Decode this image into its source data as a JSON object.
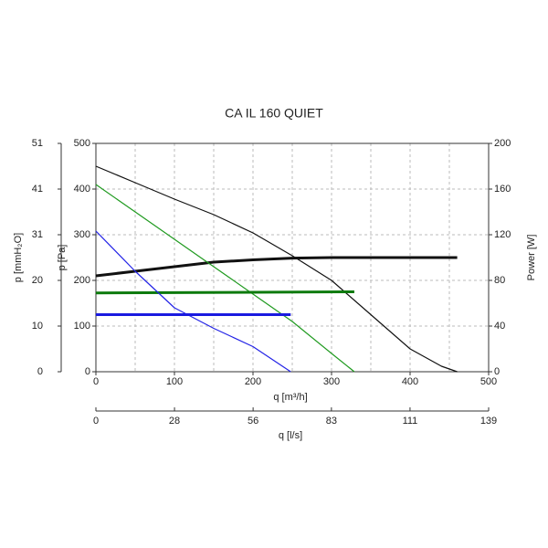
{
  "chart_data": {
    "type": "line",
    "title": "CA IL 160 QUIET",
    "xlabel": "q [m³/h]",
    "ylabel": "p [Pa]",
    "y2label": "Power [W]",
    "y3label": "p [mmH₂O]",
    "x2label": "q [l/s]",
    "xlim": [
      0,
      500
    ],
    "xticks": [
      0,
      100,
      200,
      300,
      400,
      500
    ],
    "xminorticks": [
      50,
      150,
      250,
      350,
      450
    ],
    "ylim": [
      0,
      500
    ],
    "yticks": [
      0,
      100,
      200,
      300,
      400,
      500
    ],
    "y2lim": [
      0,
      200
    ],
    "y2ticks": [
      0,
      40,
      80,
      120,
      160,
      200
    ],
    "y3lim": [
      0,
      51
    ],
    "y3ticks": [
      0,
      {
        "value": 10.2,
        "label": "10"
      },
      {
        "value": 20.4,
        "label": "20"
      },
      {
        "value": 30.6,
        "label": "31"
      },
      {
        "value": 40.8,
        "label": "41"
      },
      51
    ],
    "x2lim": [
      0,
      138.9
    ],
    "x2ticks": [
      0,
      {
        "value": 27.8,
        "label": "28"
      },
      {
        "value": 55.6,
        "label": "56"
      },
      {
        "value": 83.3,
        "label": "83"
      },
      {
        "value": 111.1,
        "label": "111"
      },
      {
        "value": 138.9,
        "label": "139"
      }
    ],
    "grid": true,
    "series": [
      {
        "color": "#111111",
        "width": 1.2,
        "x": [
          0,
          50,
          100,
          150,
          200,
          250,
          300,
          350,
          400,
          440,
          460
        ],
        "values": [
          450,
          414,
          378,
          344,
          304,
          254,
          200,
          125,
          50,
          12,
          0
        ]
      },
      {
        "color": "#111111",
        "width": 3,
        "axis": "y2",
        "x": [
          0,
          50,
          100,
          150,
          200,
          250,
          300,
          460
        ],
        "values": [
          84,
          88,
          92,
          96,
          98,
          99.5,
          100,
          100
        ]
      },
      {
        "color": "#1f9a1f",
        "width": 1.2,
        "x": [
          0,
          50,
          100,
          150,
          200,
          250,
          300,
          329
        ],
        "values": [
          410,
          350,
          290,
          230,
          170,
          110,
          40,
          0
        ]
      },
      {
        "color": "#0d7a0d",
        "width": 3,
        "axis": "y2",
        "x": [
          0,
          329
        ],
        "values": [
          69,
          70
        ]
      },
      {
        "color": "#2323e6",
        "width": 1.2,
        "x": [
          0,
          50,
          100,
          150,
          200,
          248
        ],
        "values": [
          308,
          220,
          140,
          95,
          55,
          0
        ]
      },
      {
        "color": "#1a1ae0",
        "width": 3,
        "axis": "y2",
        "x": [
          0,
          248
        ],
        "values": [
          50,
          50
        ]
      }
    ]
  }
}
